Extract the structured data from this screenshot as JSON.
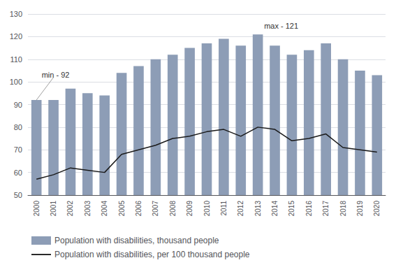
{
  "chart_data": {
    "type": "bar",
    "categories": [
      "2000",
      "2001",
      "2002",
      "2003",
      "2004",
      "2005",
      "2006",
      "2007",
      "2008",
      "2009",
      "2010",
      "2011",
      "2012",
      "2013",
      "2014",
      "2015",
      "2016",
      "2017",
      "2018",
      "2019",
      "2020"
    ],
    "series": [
      {
        "name": "Population with disabilities, thousand people",
        "type": "bar",
        "color": "#8d9db6",
        "values": [
          92,
          92,
          97,
          95,
          94,
          104,
          107,
          110,
          112,
          115,
          117,
          119,
          116,
          121,
          116,
          112,
          114,
          117,
          110,
          105,
          103
        ]
      },
      {
        "name": "Population with disabilities, per 100 thousand people",
        "type": "line",
        "color": "#1a1a1a",
        "values": [
          57,
          59,
          62,
          61,
          60,
          68,
          70,
          72,
          75,
          76,
          78,
          79,
          76,
          80,
          79,
          74,
          75,
          77,
          71,
          70,
          69
        ]
      }
    ],
    "annotations": [
      {
        "text": "min - 92",
        "category": "2000",
        "value": 92
      },
      {
        "text": "max - 121",
        "category": "2013",
        "value": 121
      }
    ],
    "ylim": [
      50,
      130
    ],
    "yticks": [
      50,
      60,
      70,
      80,
      90,
      100,
      110,
      120,
      130
    ],
    "grid": true,
    "legend": "bottom"
  }
}
